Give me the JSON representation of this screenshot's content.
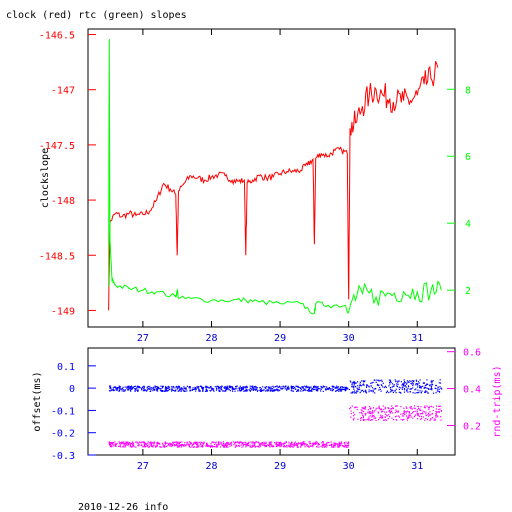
{
  "title": "clock (red) rtc (green) slopes",
  "footer": "2010-12-26 info",
  "colors": {
    "axis": "#000000",
    "red": "#ff0000",
    "green": "#00ff00",
    "blue": "#0000ff",
    "magenta": "#ff00ff",
    "navy": "#0000cc"
  },
  "chart_data": [
    {
      "type": "line",
      "title": "clock (red) rtc (green) slopes",
      "ylabel": "clockslope",
      "xlim": [
        26.2,
        31.55
      ],
      "ylim_left": [
        -149.15,
        -146.45
      ],
      "ylim_right": [
        0.9,
        9.8
      ],
      "x_ticks": [
        27,
        28,
        29,
        30,
        31
      ],
      "x_tick_labels": [
        "27",
        "28",
        "29",
        "30",
        "31"
      ],
      "y_ticks_left": [
        -146.5,
        -147,
        -147.5,
        -148,
        -148.5,
        -149
      ],
      "y_tick_labels_left": [
        "-146.5",
        "-147",
        "-147.5",
        "-148",
        "-148.5",
        "-149"
      ],
      "y_ticks_right": [
        2,
        4,
        6,
        8
      ],
      "y_tick_labels_right": [
        "2",
        "4",
        "6",
        "8"
      ],
      "series": [
        {
          "color": "red",
          "axis": "left",
          "x": [
            26.5,
            26.52,
            26.6,
            26.7,
            26.8,
            26.9,
            27.0,
            27.1,
            27.2,
            27.3,
            27.4,
            27.48,
            27.5,
            27.52,
            27.6,
            27.7,
            27.8,
            27.9,
            28.0,
            28.1,
            28.2,
            28.3,
            28.4,
            28.48,
            28.5,
            28.52,
            28.6,
            28.7,
            28.8,
            28.9,
            29.0,
            29.1,
            29.2,
            29.3,
            29.4,
            29.48,
            29.5,
            29.52,
            29.6,
            29.7,
            29.8,
            29.9,
            29.98,
            30.0,
            30.02,
            30.1,
            30.2,
            30.3,
            30.4,
            30.5,
            30.6,
            30.7,
            30.8,
            30.9,
            31.0,
            31.1,
            31.2,
            31.3
          ],
          "y": [
            -149.0,
            -148.2,
            -148.12,
            -148.15,
            -148.12,
            -148.14,
            -148.13,
            -148.1,
            -148.0,
            -147.85,
            -147.9,
            -147.95,
            -148.5,
            -147.92,
            -147.85,
            -147.78,
            -147.8,
            -147.82,
            -147.79,
            -147.77,
            -147.78,
            -147.82,
            -147.83,
            -147.82,
            -148.5,
            -147.85,
            -147.82,
            -147.78,
            -147.8,
            -147.79,
            -147.76,
            -147.74,
            -147.74,
            -147.73,
            -147.68,
            -147.63,
            -148.4,
            -147.62,
            -147.58,
            -147.6,
            -147.55,
            -147.55,
            -147.58,
            -148.9,
            -147.35,
            -147.3,
            -147.15,
            -147.05,
            -147.0,
            -147.05,
            -147.08,
            -147.1,
            -147.1,
            -147.1,
            -147.05,
            -146.95,
            -146.9,
            -146.8
          ]
        },
        {
          "color": "green",
          "axis": "right",
          "x": [
            26.5,
            26.51,
            26.52,
            26.55,
            26.6,
            26.8,
            27.0,
            27.2,
            27.48,
            27.5,
            27.52,
            27.7,
            28.0,
            28.3,
            28.5,
            28.7,
            29.0,
            29.3,
            29.5,
            29.52,
            29.7,
            29.95,
            30.0,
            30.05,
            30.2,
            30.4,
            30.6,
            30.8,
            31.0,
            31.2,
            31.35
          ],
          "y": [
            2.1,
            9.5,
            3.5,
            2.3,
            2.15,
            2.05,
            2.0,
            1.95,
            1.8,
            2.0,
            1.75,
            1.75,
            1.7,
            1.7,
            1.7,
            1.65,
            1.6,
            1.6,
            1.3,
            1.6,
            1.55,
            1.55,
            1.35,
            1.7,
            1.9,
            1.8,
            1.9,
            1.95,
            1.95,
            2.0,
            2.0
          ]
        }
      ]
    },
    {
      "type": "scatter",
      "ylabel": "offset(ms)",
      "y2label": "rnd-trip(ms)",
      "xlim": [
        26.2,
        31.55
      ],
      "ylim_left": [
        -0.3,
        0.18
      ],
      "ylim_right": [
        0.04,
        0.62
      ],
      "x_ticks": [
        27,
        28,
        29,
        30,
        31
      ],
      "x_tick_labels": [
        "27",
        "28",
        "29",
        "30",
        "31"
      ],
      "y_ticks_left": [
        0.1,
        0,
        -0.1,
        -0.2,
        -0.3
      ],
      "y_tick_labels_left": [
        "0.1",
        "0",
        "-0.1",
        "-0.2",
        "-0.3"
      ],
      "y_ticks_right": [
        0.2,
        0.4,
        0.6
      ],
      "y_tick_labels_right": [
        "0.2",
        "0.4",
        "0.6"
      ],
      "series": [
        {
          "color": "blue",
          "axis": "left",
          "x": [
            26.5,
            27.0,
            27.5,
            28.0,
            28.5,
            29.0,
            29.5,
            29.99,
            30.0,
            30.5,
            31.0,
            31.35
          ],
          "y": [
            0.0,
            0.0,
            0.0,
            0.0,
            0.0,
            0.0,
            0.0,
            0.0,
            0.01,
            0.01,
            0.01,
            0.01
          ],
          "spread": [
            0.012,
            0.012,
            0.012,
            0.012,
            0.012,
            0.012,
            0.012,
            0.012,
            0.03,
            0.03,
            0.03,
            0.03
          ]
        },
        {
          "color": "magenta",
          "axis": "right",
          "x": [
            26.5,
            27.0,
            27.5,
            28.0,
            28.5,
            29.0,
            29.5,
            29.99,
            30.0,
            30.5,
            31.0,
            31.35
          ],
          "y": [
            0.1,
            0.1,
            0.1,
            0.1,
            0.1,
            0.1,
            0.1,
            0.1,
            0.27,
            0.27,
            0.27,
            0.27
          ],
          "spread": [
            0.015,
            0.015,
            0.015,
            0.015,
            0.015,
            0.015,
            0.015,
            0.015,
            0.04,
            0.04,
            0.04,
            0.04
          ]
        }
      ]
    }
  ]
}
